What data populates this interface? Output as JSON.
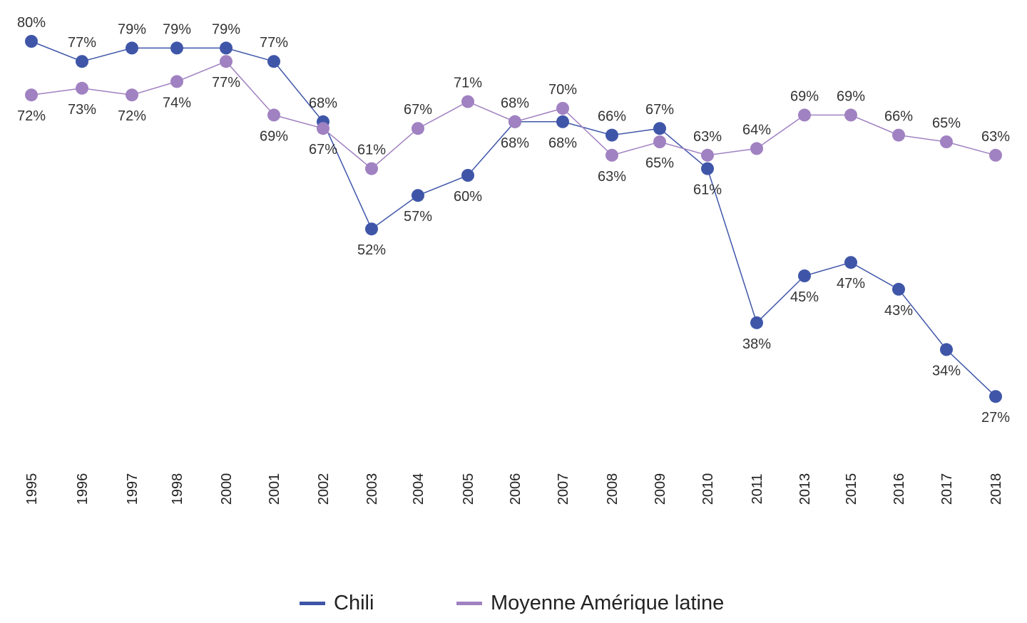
{
  "chart_data": {
    "type": "line",
    "categories": [
      "1995",
      "1996",
      "1997",
      "1998",
      "2000",
      "2001",
      "2002",
      "2003",
      "2004",
      "2005",
      "2006",
      "2007",
      "2008",
      "2009",
      "2010",
      "2011",
      "2013",
      "2015",
      "2016",
      "2017",
      "2018"
    ],
    "series": [
      {
        "name": "Chili",
        "color": "#3f56a8",
        "values": [
          80,
          77,
          79,
          79,
          79,
          77,
          68,
          52,
          57,
          60,
          68,
          68,
          66,
          67,
          61,
          38,
          45,
          47,
          43,
          34,
          27
        ],
        "labels": [
          "80%",
          "77%",
          "79%",
          "79%",
          "79%",
          "77%",
          "68%",
          "52%",
          "57%",
          "60%",
          "68%",
          "68%",
          "66%",
          "67%",
          "61%",
          "38%",
          "45%",
          "47%",
          "43%",
          "34%",
          "27%"
        ]
      },
      {
        "name": "Moyenne Amérique latine",
        "color": "#a081c1",
        "values": [
          72,
          73,
          72,
          74,
          77,
          69,
          67,
          61,
          67,
          71,
          68,
          70,
          63,
          65,
          63,
          64,
          69,
          69,
          66,
          65,
          63
        ],
        "labels": [
          "72%",
          "73%",
          "72%",
          "74%",
          "77%",
          "69%",
          "67%",
          "61%",
          "67%",
          "71%",
          "68%",
          "70%",
          "63%",
          "65%",
          "63%",
          "64%",
          "69%",
          "69%",
          "66%",
          "65%",
          "63%"
        ]
      }
    ],
    "legend_position": "bottom",
    "grid": false
  }
}
